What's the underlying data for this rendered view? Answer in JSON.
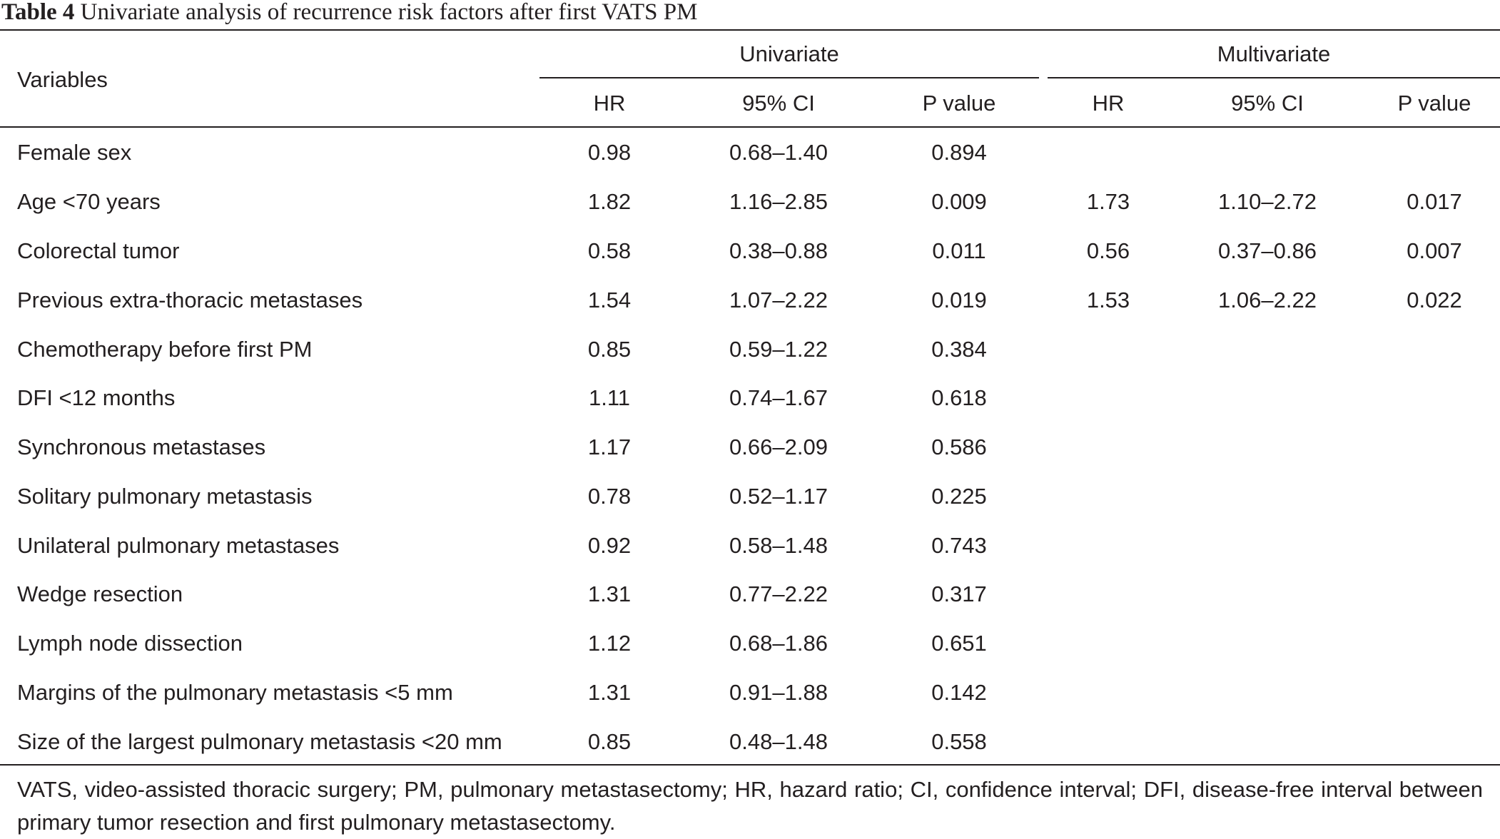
{
  "caption": {
    "label": "Table 4",
    "text": "Univariate analysis of recurrence risk factors after first VATS PM"
  },
  "header": {
    "variables": "Variables",
    "univariate": "Univariate",
    "multivariate": "Multivariate",
    "hr": "HR",
    "ci": "95% CI",
    "p": "P value"
  },
  "rows": [
    {
      "variable": "Female sex",
      "u_hr": "0.98",
      "u_ci": "0.68–1.40",
      "u_p": "0.894",
      "m_hr": "",
      "m_ci": "",
      "m_p": ""
    },
    {
      "variable": "Age <70 years",
      "u_hr": "1.82",
      "u_ci": "1.16–2.85",
      "u_p": "0.009",
      "m_hr": "1.73",
      "m_ci": "1.10–2.72",
      "m_p": "0.017"
    },
    {
      "variable": "Colorectal tumor",
      "u_hr": "0.58",
      "u_ci": "0.38–0.88",
      "u_p": "0.011",
      "m_hr": "0.56",
      "m_ci": "0.37–0.86",
      "m_p": "0.007"
    },
    {
      "variable": "Previous extra-thoracic metastases",
      "u_hr": "1.54",
      "u_ci": "1.07–2.22",
      "u_p": "0.019",
      "m_hr": "1.53",
      "m_ci": "1.06–2.22",
      "m_p": "0.022"
    },
    {
      "variable": "Chemotherapy before first PM",
      "u_hr": "0.85",
      "u_ci": "0.59–1.22",
      "u_p": "0.384",
      "m_hr": "",
      "m_ci": "",
      "m_p": ""
    },
    {
      "variable": "DFI <12 months",
      "u_hr": "1.11",
      "u_ci": "0.74–1.67",
      "u_p": "0.618",
      "m_hr": "",
      "m_ci": "",
      "m_p": ""
    },
    {
      "variable": "Synchronous metastases",
      "u_hr": "1.17",
      "u_ci": "0.66–2.09",
      "u_p": "0.586",
      "m_hr": "",
      "m_ci": "",
      "m_p": ""
    },
    {
      "variable": "Solitary pulmonary metastasis",
      "u_hr": "0.78",
      "u_ci": "0.52–1.17",
      "u_p": "0.225",
      "m_hr": "",
      "m_ci": "",
      "m_p": ""
    },
    {
      "variable": "Unilateral pulmonary metastases",
      "u_hr": "0.92",
      "u_ci": "0.58–1.48",
      "u_p": "0.743",
      "m_hr": "",
      "m_ci": "",
      "m_p": ""
    },
    {
      "variable": "Wedge resection",
      "u_hr": "1.31",
      "u_ci": "0.77–2.22",
      "u_p": "0.317",
      "m_hr": "",
      "m_ci": "",
      "m_p": ""
    },
    {
      "variable": "Lymph node dissection",
      "u_hr": "1.12",
      "u_ci": "0.68–1.86",
      "u_p": "0.651",
      "m_hr": "",
      "m_ci": "",
      "m_p": ""
    },
    {
      "variable": "Margins of the pulmonary metastasis <5 mm",
      "u_hr": "1.31",
      "u_ci": "0.91–1.88",
      "u_p": "0.142",
      "m_hr": "",
      "m_ci": "",
      "m_p": ""
    },
    {
      "variable": "Size of the largest pulmonary metastasis <20 mm",
      "u_hr": "0.85",
      "u_ci": "0.48–1.48",
      "u_p": "0.558",
      "m_hr": "",
      "m_ci": "",
      "m_p": ""
    }
  ],
  "footnote": "VATS, video-assisted thoracic surgery; PM, pulmonary metastasectomy; HR, hazard ratio; CI, confidence interval; DFI, disease-free interval between primary tumor resection and first pulmonary metastasectomy."
}
